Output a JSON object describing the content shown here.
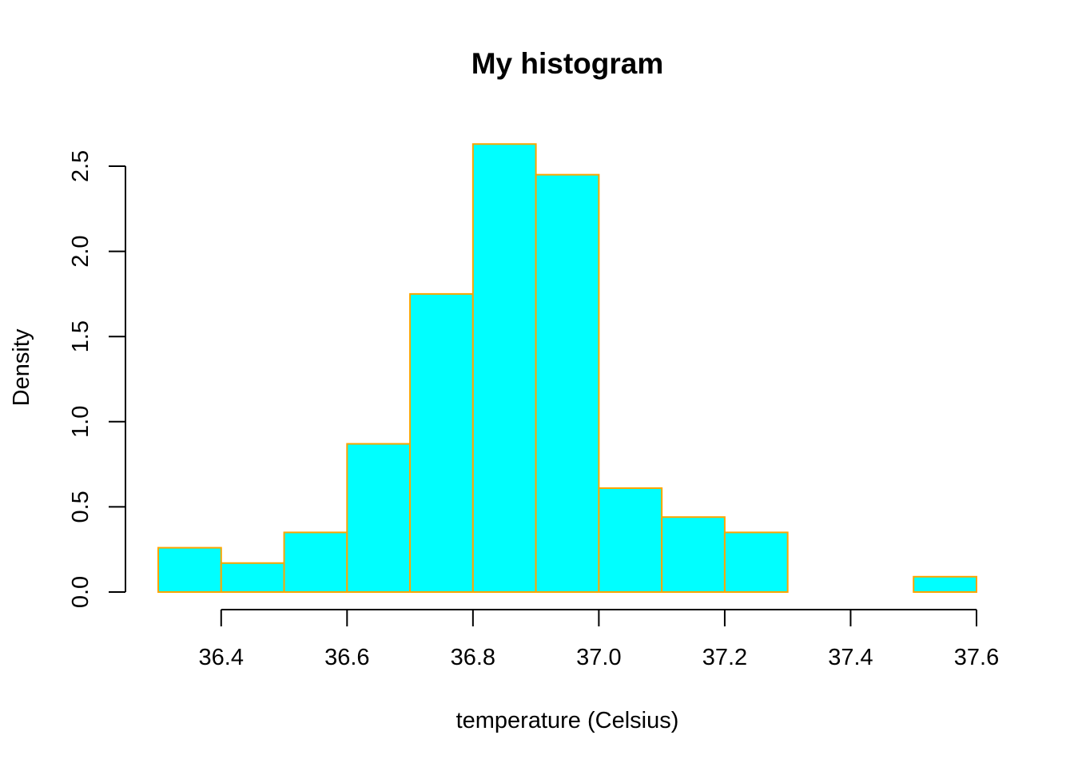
{
  "chart_data": {
    "type": "bar",
    "title": "My histogram",
    "xlabel": "temperature (Celsius)",
    "ylabel": "Density",
    "bin_edges": [
      36.3,
      36.4,
      36.5,
      36.6,
      36.7,
      36.8,
      36.9,
      37.0,
      37.1,
      37.2,
      37.3,
      37.4,
      37.5,
      37.6
    ],
    "values": [
      0.26,
      0.17,
      0.35,
      0.87,
      1.75,
      2.63,
      2.45,
      0.61,
      0.44,
      0.35,
      0.0,
      0.0,
      0.09
    ],
    "x_ticks": [
      "36.4",
      "36.6",
      "36.8",
      "37.0",
      "37.2",
      "37.4",
      "37.6"
    ],
    "y_ticks": [
      "0.0",
      "0.5",
      "1.0",
      "1.5",
      "2.0",
      "2.5"
    ],
    "xlim": [
      36.3,
      37.6
    ],
    "ylim": [
      0,
      2.5
    ],
    "colors": {
      "fill": "#00ffff",
      "border": "#ffa500"
    },
    "grid": false,
    "legend": "none"
  }
}
